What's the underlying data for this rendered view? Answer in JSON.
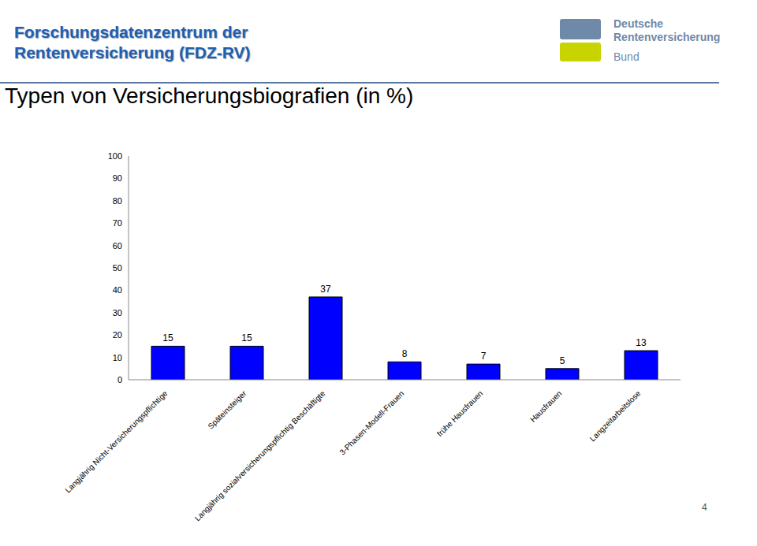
{
  "header": {
    "title_lines": [
      "Forschungsdatenzentrum der",
      "Rentenversicherung (FDZ-RV)"
    ],
    "logo": [
      "Deutsche",
      "Rentenversicherung",
      "Bund"
    ],
    "page_number": 4
  },
  "chart_data": {
    "type": "bar",
    "title": "Typen von Versicherungsbiografien (in %)",
    "categories": [
      "Langjährig Nicht-Versicherungspflichtige",
      "Späteinsteiger",
      "Langjährig sozialversicherungspflichtig Beschäftigte",
      "3-Phasen-Modell-Frauen",
      "frühe Hausfrauen",
      "Hausfrauen",
      "Langzeitarbeitslose"
    ],
    "values": [
      15,
      15,
      37,
      8,
      7,
      5,
      13
    ],
    "color": "#0000ff",
    "ylim": [
      0,
      100
    ],
    "yticks": [
      0,
      10,
      20,
      30,
      40,
      50,
      60,
      70,
      80,
      90,
      100
    ],
    "grid": false,
    "data_labels": true
  }
}
